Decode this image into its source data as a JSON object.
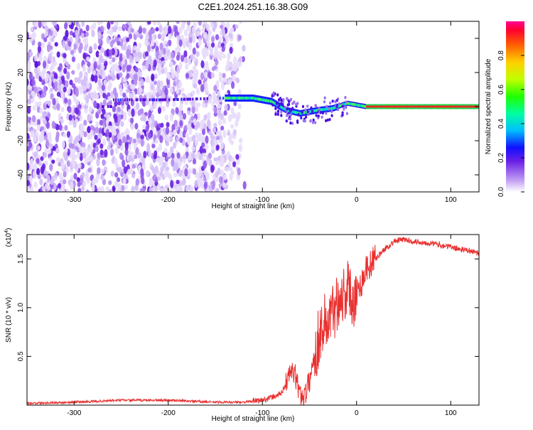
{
  "title": "C2E1.2024.251.16.38.G09",
  "chart_data": [
    {
      "type": "heatmap",
      "xlabel": "Height of straight line (km)",
      "ylabel": "Frequency (Hz)",
      "xlim": [
        -350,
        130
      ],
      "ylim": [
        -50,
        50
      ],
      "xticks": [
        -300,
        -200,
        -100,
        0,
        100
      ],
      "yticks": [
        -40,
        -20,
        0,
        20,
        40
      ],
      "colorbar": {
        "label": "Normalized spectral amplitude",
        "range": [
          0,
          1
        ],
        "ticks": [
          "0.0",
          "0.2",
          "0.4",
          "0.6",
          "0.8"
        ]
      },
      "center_track": [
        {
          "x": -260,
          "y": 4
        },
        {
          "x": -200,
          "y": 4
        },
        {
          "x": -140,
          "y": 5
        },
        {
          "x": -110,
          "y": 5
        },
        {
          "x": -90,
          "y": 3
        },
        {
          "x": -75,
          "y": -2
        },
        {
          "x": -60,
          "y": -4
        },
        {
          "x": -40,
          "y": -2
        },
        {
          "x": -25,
          "y": -1
        },
        {
          "x": -10,
          "y": 2
        },
        {
          "x": 0,
          "y": 1
        },
        {
          "x": 10,
          "y": 0
        },
        {
          "x": 130,
          "y": 0
        }
      ]
    },
    {
      "type": "line",
      "xlabel": "Height of straight line (km)",
      "ylabel": "SNR (10 * v/v)",
      "yscale_label": "(x10",
      "yscale_exp": "4",
      "yscale_close": ")",
      "xlim": [
        -350,
        130
      ],
      "ylim": [
        0,
        1.75
      ],
      "xticks": [
        -300,
        -200,
        -100,
        0,
        100
      ],
      "yticks": [
        "0.5",
        "1.0",
        "1.5"
      ],
      "color": "#e83030",
      "series": [
        {
          "name": "SNR",
          "x": [
            -350,
            -300,
            -250,
            -200,
            -150,
            -120,
            -100,
            -90,
            -80,
            -75,
            -70,
            -65,
            -60,
            -55,
            -50,
            -45,
            -40,
            -35,
            -30,
            -25,
            -20,
            -15,
            -10,
            -5,
            0,
            5,
            10,
            20,
            30,
            40,
            50,
            60,
            80,
            100,
            130
          ],
          "y": [
            0.02,
            0.03,
            0.05,
            0.05,
            0.03,
            0.03,
            0.05,
            0.08,
            0.12,
            0.22,
            0.35,
            0.3,
            0.1,
            0.1,
            0.25,
            0.5,
            0.7,
            0.85,
            0.85,
            0.95,
            1.1,
            1.12,
            1.2,
            1.1,
            1.15,
            1.25,
            1.4,
            1.5,
            1.6,
            1.68,
            1.7,
            1.68,
            1.66,
            1.62,
            1.56
          ]
        }
      ]
    }
  ]
}
